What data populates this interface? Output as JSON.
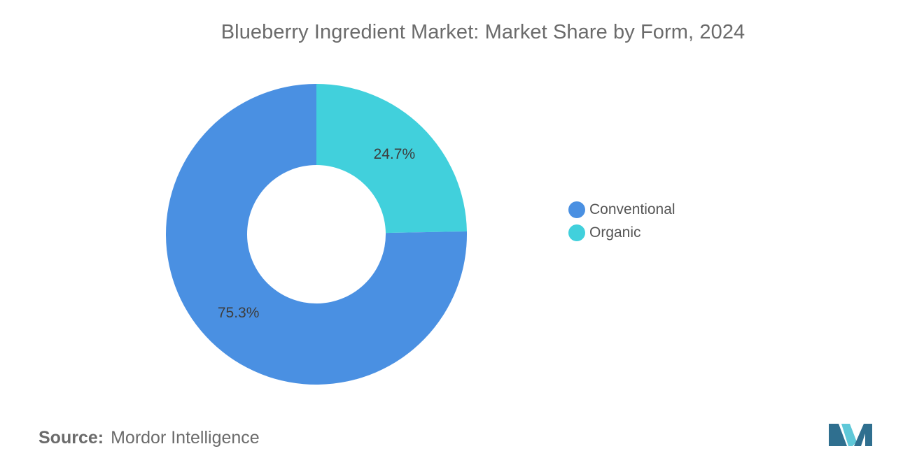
{
  "chart_data": {
    "type": "pie",
    "title": "Blueberry Ingredient Market: Market Share by Form, 2024",
    "donut": true,
    "legend_position": "right",
    "slices": [
      {
        "label": "Organic",
        "value": 24.7,
        "value_label": "24.7%",
        "color": "#41d0dc"
      },
      {
        "label": "Conventional",
        "value": 75.3,
        "value_label": "75.3%",
        "color": "#4a90e2"
      }
    ]
  },
  "legend": {
    "items": [
      {
        "label": "Conventional",
        "color": "#4a90e2"
      },
      {
        "label": "Organic",
        "color": "#41d0dc"
      }
    ]
  },
  "source": {
    "key": "Source:",
    "value": "Mordor Intelligence"
  },
  "colors": {
    "title_text": "#6b6b6b",
    "logo_dark": "#2f6f8f",
    "logo_light": "#5fc8d8"
  }
}
